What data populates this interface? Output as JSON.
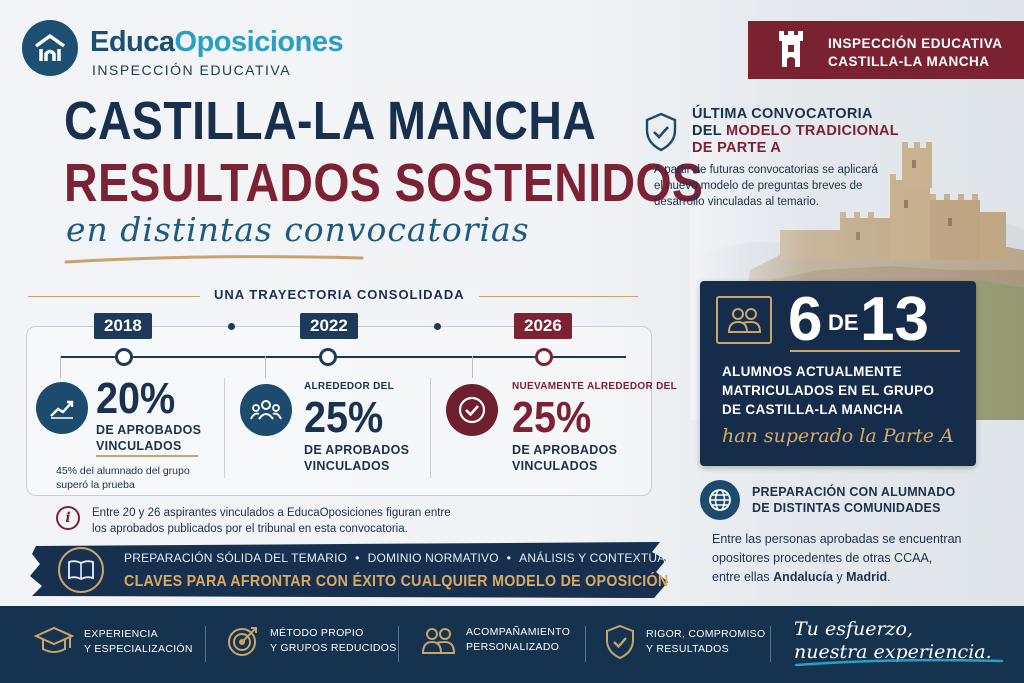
{
  "brand": {
    "name_part1": "Educa",
    "name_part2": "Oposiciones",
    "subtitle": "INSPECCIÓN EDUCATIVA"
  },
  "headline": {
    "line1": "CASTILLA-LA MANCHA",
    "line2": "RESULTADOS SOSTENIDOS",
    "line3": "en distintas convocatorias"
  },
  "timeline": {
    "title": "UNA TRAYECTORIA CONSOLIDADA",
    "items": [
      {
        "year": "2018",
        "pre": "",
        "value": "20%",
        "label_line1": "DE APROBADOS",
        "label_line2": "VINCULADOS",
        "note_line1": "45% del alumnado del grupo",
        "note_line2": "superó la prueba",
        "icon": "chart-growth-icon"
      },
      {
        "year": "2022",
        "pre": "ALREDEDOR DEL",
        "value": "25%",
        "label_line1": "DE APROBADOS",
        "label_line2": "VINCULADOS",
        "icon": "group-people-icon"
      },
      {
        "year": "2026",
        "pre": "NUEVAMENTE ALREDEDOR DEL",
        "value": "25%",
        "label_line1": "DE APROBADOS",
        "label_line2": "VINCULADOS",
        "icon": "check-circle-icon"
      }
    ]
  },
  "info": {
    "line1": "Entre 20 y 26 aspirantes vinculados a EducaOposiciones figuran entre",
    "line2": "los aprobados publicados por el tribunal en esta convocatoria."
  },
  "keys": {
    "item1": "PREPARACIÓN SÓLIDA DEL TEMARIO",
    "item2": "DOMINIO NORMATIVO",
    "item3": "ANÁLISIS Y CONTEXTUALIZACIÓN",
    "separator": "•",
    "tagline": "CLAVES PARA AFRONTAR CON ÉXITO CUALQUIER MODELO DE OPOSICIÓN"
  },
  "region_banner": {
    "line1": "INSPECCIÓN EDUCATIVA",
    "line2": "CASTILLA-LA MANCHA"
  },
  "ultima": {
    "title_line1": "ÚLTIMA CONVOCATORIA",
    "title_line2_pre": "DEL ",
    "title_line2_red": "MODELO TRADICIONAL",
    "title_line3": "DE PARTE A",
    "text_line1": "A partir de futuras convocatorias se aplicará",
    "text_line2": "el nuevo modelo de preguntas breves de",
    "text_line3": "desarrollo vinculadas al temario."
  },
  "stat_card": {
    "num1": "6",
    "de": "DE",
    "num2": "13",
    "line1": "ALUMNOS ACTUALMENTE",
    "line2": "MATRICULADOS EN EL GRUPO",
    "line3": "DE CASTILLA-LA MANCHA",
    "script": "han superado la Parte A"
  },
  "communities": {
    "title_line1": "PREPARACIÓN CON ALUMNADO",
    "title_line2": "DE DISTINTAS COMUNIDADES",
    "text_line1": "Entre las personas aprobadas se encuentran",
    "text_line2": "opositores procedentes de otras CCAA,",
    "text_line3_pre": "entre ellas ",
    "region1": "Andalucía",
    "conj": " y ",
    "region2": "Madrid",
    "end": "."
  },
  "footer": {
    "items": [
      {
        "line1": "EXPERIENCIA",
        "line2": "Y ESPECIALIZACIÓN",
        "icon": "graduation-cap-icon"
      },
      {
        "line1": "MÉTODO PROPIO",
        "line2": "Y GRUPOS REDUCIDOS",
        "icon": "target-icon"
      },
      {
        "line1": "ACOMPAÑAMIENTO",
        "line2": "PERSONALIZADO",
        "icon": "people-icon"
      },
      {
        "line1": "RIGOR, COMPROMISO",
        "line2": "Y RESULTADOS",
        "icon": "shield-check-icon"
      }
    ],
    "script_line1": "Tu esfuerzo,",
    "script_line2": "nuestra experiencia."
  },
  "colors": {
    "navy": "#182f4e",
    "burgundy": "#7c2233",
    "gold": "#c9a46b",
    "teal": "#2a9fc4"
  }
}
